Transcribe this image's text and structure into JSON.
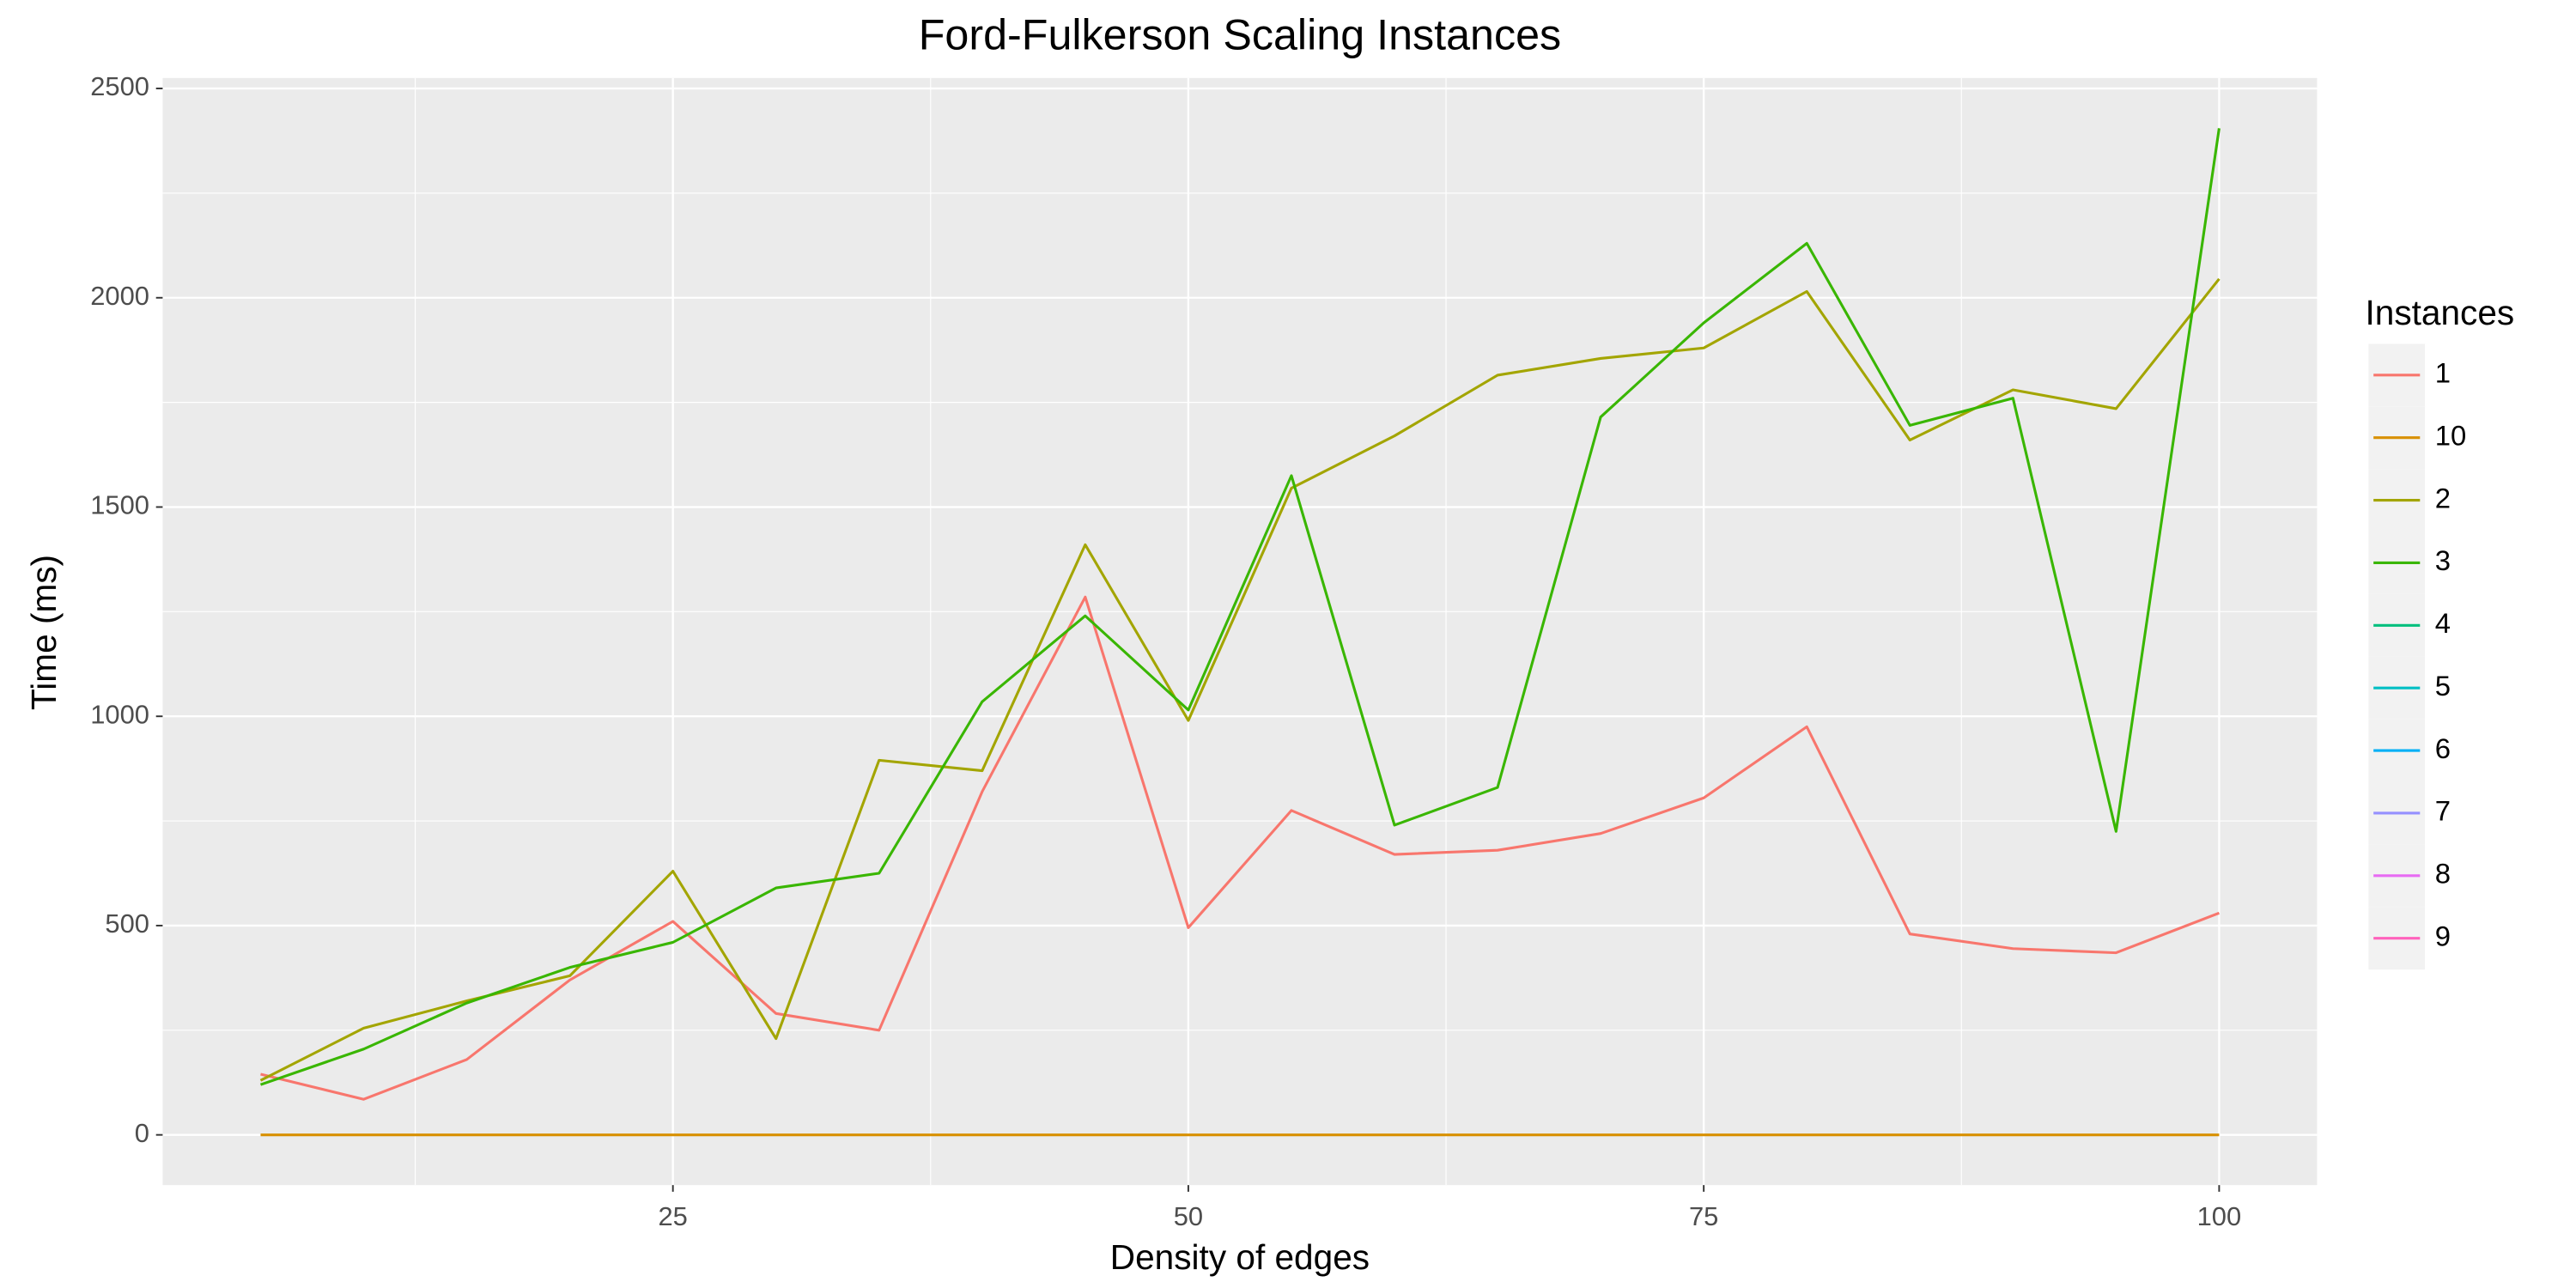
{
  "chart_data": {
    "type": "line",
    "title": "Ford-Fulkerson Scaling Instances",
    "x_label": "Density of edges",
    "y_label": "Time (ms)",
    "legend_title": "Instances",
    "legend_position": "right",
    "grid": true,
    "panel_color": "#EBEBEB",
    "x": [
      5,
      10,
      15,
      20,
      25,
      30,
      35,
      40,
      45,
      50,
      55,
      60,
      65,
      70,
      75,
      80,
      85,
      90,
      95,
      100
    ],
    "xlim": [
      0.25,
      104.75
    ],
    "xticks": [
      25,
      50,
      75,
      100
    ],
    "x_minor_ticks": [
      12.5,
      37.5,
      62.5,
      87.5
    ],
    "ylim": [
      -120,
      2525
    ],
    "yticks": [
      0,
      500,
      1000,
      1500,
      2000,
      2500
    ],
    "y_minor_ticks": [
      250,
      750,
      1250,
      1750,
      2250
    ],
    "series": [
      {
        "name": "1",
        "color": "#F8766D",
        "values": [
          145,
          85,
          180,
          370,
          510,
          290,
          250,
          820,
          1285,
          495,
          775,
          670,
          680,
          720,
          805,
          975,
          480,
          445,
          435,
          530
        ]
      },
      {
        "name": "10",
        "color": "#D89000",
        "values": [
          0,
          0,
          0,
          0,
          0,
          0,
          0,
          0,
          0,
          0,
          0,
          0,
          0,
          0,
          0,
          0,
          0,
          0,
          0,
          0
        ]
      },
      {
        "name": "2",
        "color": "#A3A500",
        "values": [
          130,
          255,
          320,
          380,
          630,
          230,
          895,
          870,
          1410,
          990,
          1545,
          1670,
          1815,
          1855,
          1880,
          2015,
          1660,
          1780,
          1735,
          2045
        ]
      },
      {
        "name": "3",
        "color": "#39B600",
        "values": [
          120,
          205,
          315,
          400,
          460,
          590,
          625,
          1035,
          1240,
          1015,
          1575,
          740,
          830,
          1715,
          1940,
          2130,
          1695,
          1760,
          725,
          2405
        ]
      },
      {
        "name": "4",
        "color": "#00BF7D",
        "values": [
          null,
          null,
          null,
          null,
          null,
          null,
          null,
          null,
          null,
          null,
          null,
          null,
          null,
          null,
          null,
          null,
          null,
          null,
          null,
          null
        ]
      },
      {
        "name": "5",
        "color": "#00BFC4",
        "values": [
          null,
          null,
          null,
          null,
          null,
          null,
          null,
          null,
          null,
          null,
          null,
          null,
          null,
          null,
          null,
          null,
          null,
          null,
          null,
          null
        ]
      },
      {
        "name": "6",
        "color": "#00B0F6",
        "values": [
          null,
          null,
          null,
          null,
          null,
          null,
          null,
          null,
          null,
          null,
          null,
          null,
          null,
          null,
          null,
          null,
          null,
          null,
          null,
          null
        ]
      },
      {
        "name": "7",
        "color": "#9590FF",
        "values": [
          null,
          null,
          null,
          null,
          null,
          null,
          null,
          null,
          null,
          null,
          null,
          null,
          null,
          null,
          null,
          null,
          null,
          null,
          null,
          null
        ]
      },
      {
        "name": "8",
        "color": "#E76BF3",
        "values": [
          null,
          null,
          null,
          null,
          null,
          null,
          null,
          null,
          null,
          null,
          null,
          null,
          null,
          null,
          null,
          null,
          null,
          null,
          null,
          null
        ]
      },
      {
        "name": "9",
        "color": "#FF62BC",
        "values": [
          null,
          null,
          null,
          null,
          null,
          null,
          null,
          null,
          null,
          null,
          null,
          null,
          null,
          null,
          null,
          null,
          null,
          null,
          null,
          null
        ]
      }
    ]
  }
}
